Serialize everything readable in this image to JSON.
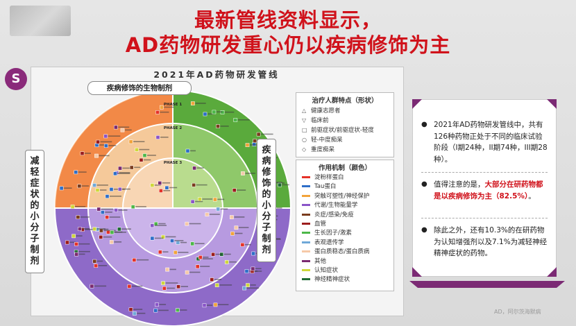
{
  "title": {
    "line1": "最新管线资料显示，",
    "line2": "AD药物研发重心仍以疾病修饰为主"
  },
  "logo": {
    "glyph": "S"
  },
  "diagram": {
    "title": "2021年AD药物研发管线",
    "bio_label": "疾病修饰的生物制剂",
    "left_label": [
      "减",
      "轻",
      "症",
      "状",
      "的",
      "小",
      "分",
      "子",
      "制",
      "剂"
    ],
    "right_label": [
      "疾",
      "病",
      "修",
      "饰",
      "的",
      "小",
      "分",
      "子",
      "制",
      "剂"
    ],
    "phases": [
      "PHASE 1",
      "PHASE 2",
      "PHASE 3"
    ],
    "population_legend": {
      "heading": "治疗人群特点（形状）",
      "items": [
        {
          "symbol": "△",
          "label": "健康志愿者"
        },
        {
          "symbol": "▽",
          "label": "临床前"
        },
        {
          "symbol": "□",
          "label": "前驱症状/前驱症状-轻度"
        },
        {
          "symbol": "○",
          "label": "轻-中度痴呆"
        },
        {
          "symbol": "◇",
          "label": "重度痴呆"
        }
      ]
    },
    "mechanism_legend": {
      "heading": "作用机制（颜色）",
      "items": [
        {
          "color": "#e53228",
          "label": "淀粉样蛋白"
        },
        {
          "color": "#2e6ec8",
          "label": "Tau蛋白"
        },
        {
          "color": "#f2a33a",
          "label": "突触可塑性/神经保护"
        },
        {
          "color": "#8a55c8",
          "label": "代谢/生物能量学"
        },
        {
          "color": "#7a3c1e",
          "label": "炎症/感染/免疫"
        },
        {
          "color": "#9c1c1c",
          "label": "血管"
        },
        {
          "color": "#4cb848",
          "label": "生长因子/激素"
        },
        {
          "color": "#6fa8d8",
          "label": "表观遗传学"
        },
        {
          "color": "#f6c9a8",
          "label": "蛋白质稳态/蛋白质病"
        },
        {
          "color": "#7a2a70",
          "label": "其他"
        },
        {
          "color": "#cfd83a",
          "label": "认知症状"
        },
        {
          "color": "#1f6a34",
          "label": "神经精神症状"
        }
      ]
    }
  },
  "info": {
    "b1": "2021年AD药物研发管线中，共有126种药物正处于不同的临床试验阶段（I期24种，II期74种，III期28种）。",
    "b2_pre": "值得注意的是，",
    "b2_hl1": "大部分在研药物都是以疾病修饰为主",
    "b2_hl2": "（82.5%）",
    "b2_post": "。",
    "b3": "除此之外，还有10.3%的在研药物为认知增强剂以及7.1%为减轻神经精神症状的药物。"
  },
  "watermark": "AD，阿尔茨海默病"
}
